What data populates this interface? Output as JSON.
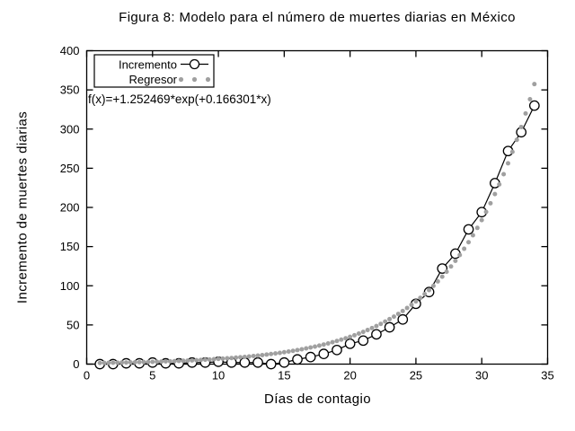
{
  "figure": {
    "background": "#ffffff",
    "text_color": "#000000"
  },
  "chart_data": {
    "type": "line",
    "title": "Figura 8: Modelo para el número de muertes diarias en México",
    "xlabel": "Días de contagio",
    "ylabel": "Incremento de muertes diarias",
    "xlim": [
      0,
      35
    ],
    "ylim": [
      0,
      400
    ],
    "xticks": [
      0,
      5,
      10,
      15,
      20,
      25,
      30,
      35
    ],
    "yticks": [
      0,
      50,
      100,
      150,
      200,
      250,
      300,
      350,
      400
    ],
    "grid": false,
    "legend_position": "top-left",
    "annotation": "f(x)=+1.252469*exp(+0.166301*x)",
    "series": [
      {
        "name": "Incremento",
        "style": "line-with-open-circle-markers",
        "color": "#000000",
        "marker_fill": "#ffffff",
        "x": [
          1,
          2,
          3,
          4,
          5,
          6,
          7,
          8,
          9,
          10,
          11,
          12,
          13,
          14,
          15,
          16,
          17,
          18,
          19,
          20,
          21,
          22,
          23,
          24,
          25,
          26,
          27,
          28,
          29,
          30,
          31,
          32,
          33,
          34
        ],
        "values": [
          0,
          0,
          1,
          1,
          2,
          1,
          1,
          2,
          2,
          3,
          2,
          2,
          2,
          0,
          2,
          6,
          9,
          13,
          18,
          26,
          30,
          38,
          47,
          57,
          77,
          92,
          122,
          141,
          172,
          194,
          231,
          272,
          296,
          330
        ]
      },
      {
        "name": "Regresor",
        "style": "scatter-dots",
        "color": "#a0a0a0",
        "formula": "1.252469*exp(0.166301*x)",
        "coef_a": 1.252469,
        "coef_b": 0.166301,
        "x_start": 1,
        "x_end": 34,
        "x_step": 0.3333
      }
    ]
  }
}
